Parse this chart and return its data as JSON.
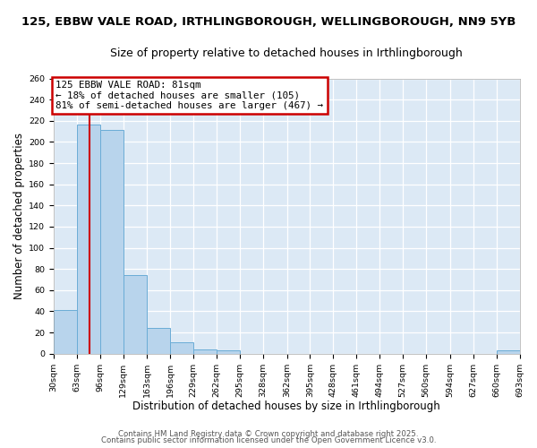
{
  "title_line1": "125, EBBW VALE ROAD, IRTHLINGBOROUGH, WELLINGBOROUGH, NN9 5YB",
  "title_line2": "Size of property relative to detached houses in Irthlingborough",
  "xlabel": "Distribution of detached houses by size in Irthlingborough",
  "ylabel": "Number of detached properties",
  "bar_edges": [
    30,
    63,
    96,
    129,
    163,
    196,
    229,
    262,
    295,
    328,
    362,
    395,
    428,
    461,
    494,
    527,
    560,
    594,
    627,
    660,
    693
  ],
  "bar_heights": [
    41,
    216,
    211,
    74,
    24,
    11,
    4,
    3,
    0,
    0,
    0,
    0,
    0,
    0,
    0,
    0,
    0,
    0,
    0,
    3
  ],
  "bar_color": "#b8d4ec",
  "bar_edgecolor": "#6aacd6",
  "bar_linewidth": 0.7,
  "vline_x": 81,
  "vline_color": "#cc0000",
  "vline_linewidth": 1.5,
  "ylim": [
    0,
    260
  ],
  "yticks": [
    0,
    20,
    40,
    60,
    80,
    100,
    120,
    140,
    160,
    180,
    200,
    220,
    240,
    260
  ],
  "tick_labels": [
    "30sqm",
    "63sqm",
    "96sqm",
    "129sqm",
    "163sqm",
    "196sqm",
    "229sqm",
    "262sqm",
    "295sqm",
    "328sqm",
    "362sqm",
    "395sqm",
    "428sqm",
    "461sqm",
    "494sqm",
    "527sqm",
    "560sqm",
    "594sqm",
    "627sqm",
    "660sqm",
    "693sqm"
  ],
  "annotation_text": "125 EBBW VALE ROAD: 81sqm\n← 18% of detached houses are smaller (105)\n81% of semi-detached houses are larger (467) →",
  "annotation_box_edgecolor": "#cc0000",
  "annotation_box_facecolor": "#ffffff",
  "footer_line1": "Contains HM Land Registry data © Crown copyright and database right 2025.",
  "footer_line2": "Contains public sector information licensed under the Open Government Licence v3.0.",
  "fig_bg_color": "#ffffff",
  "plot_bg_color": "#dce9f5",
  "grid_color": "#ffffff",
  "title_fontsize": 9.5,
  "subtitle_fontsize": 9,
  "axis_label_fontsize": 8.5,
  "tick_fontsize": 6.8,
  "annotation_fontsize": 7.8,
  "footer_fontsize": 6.2
}
